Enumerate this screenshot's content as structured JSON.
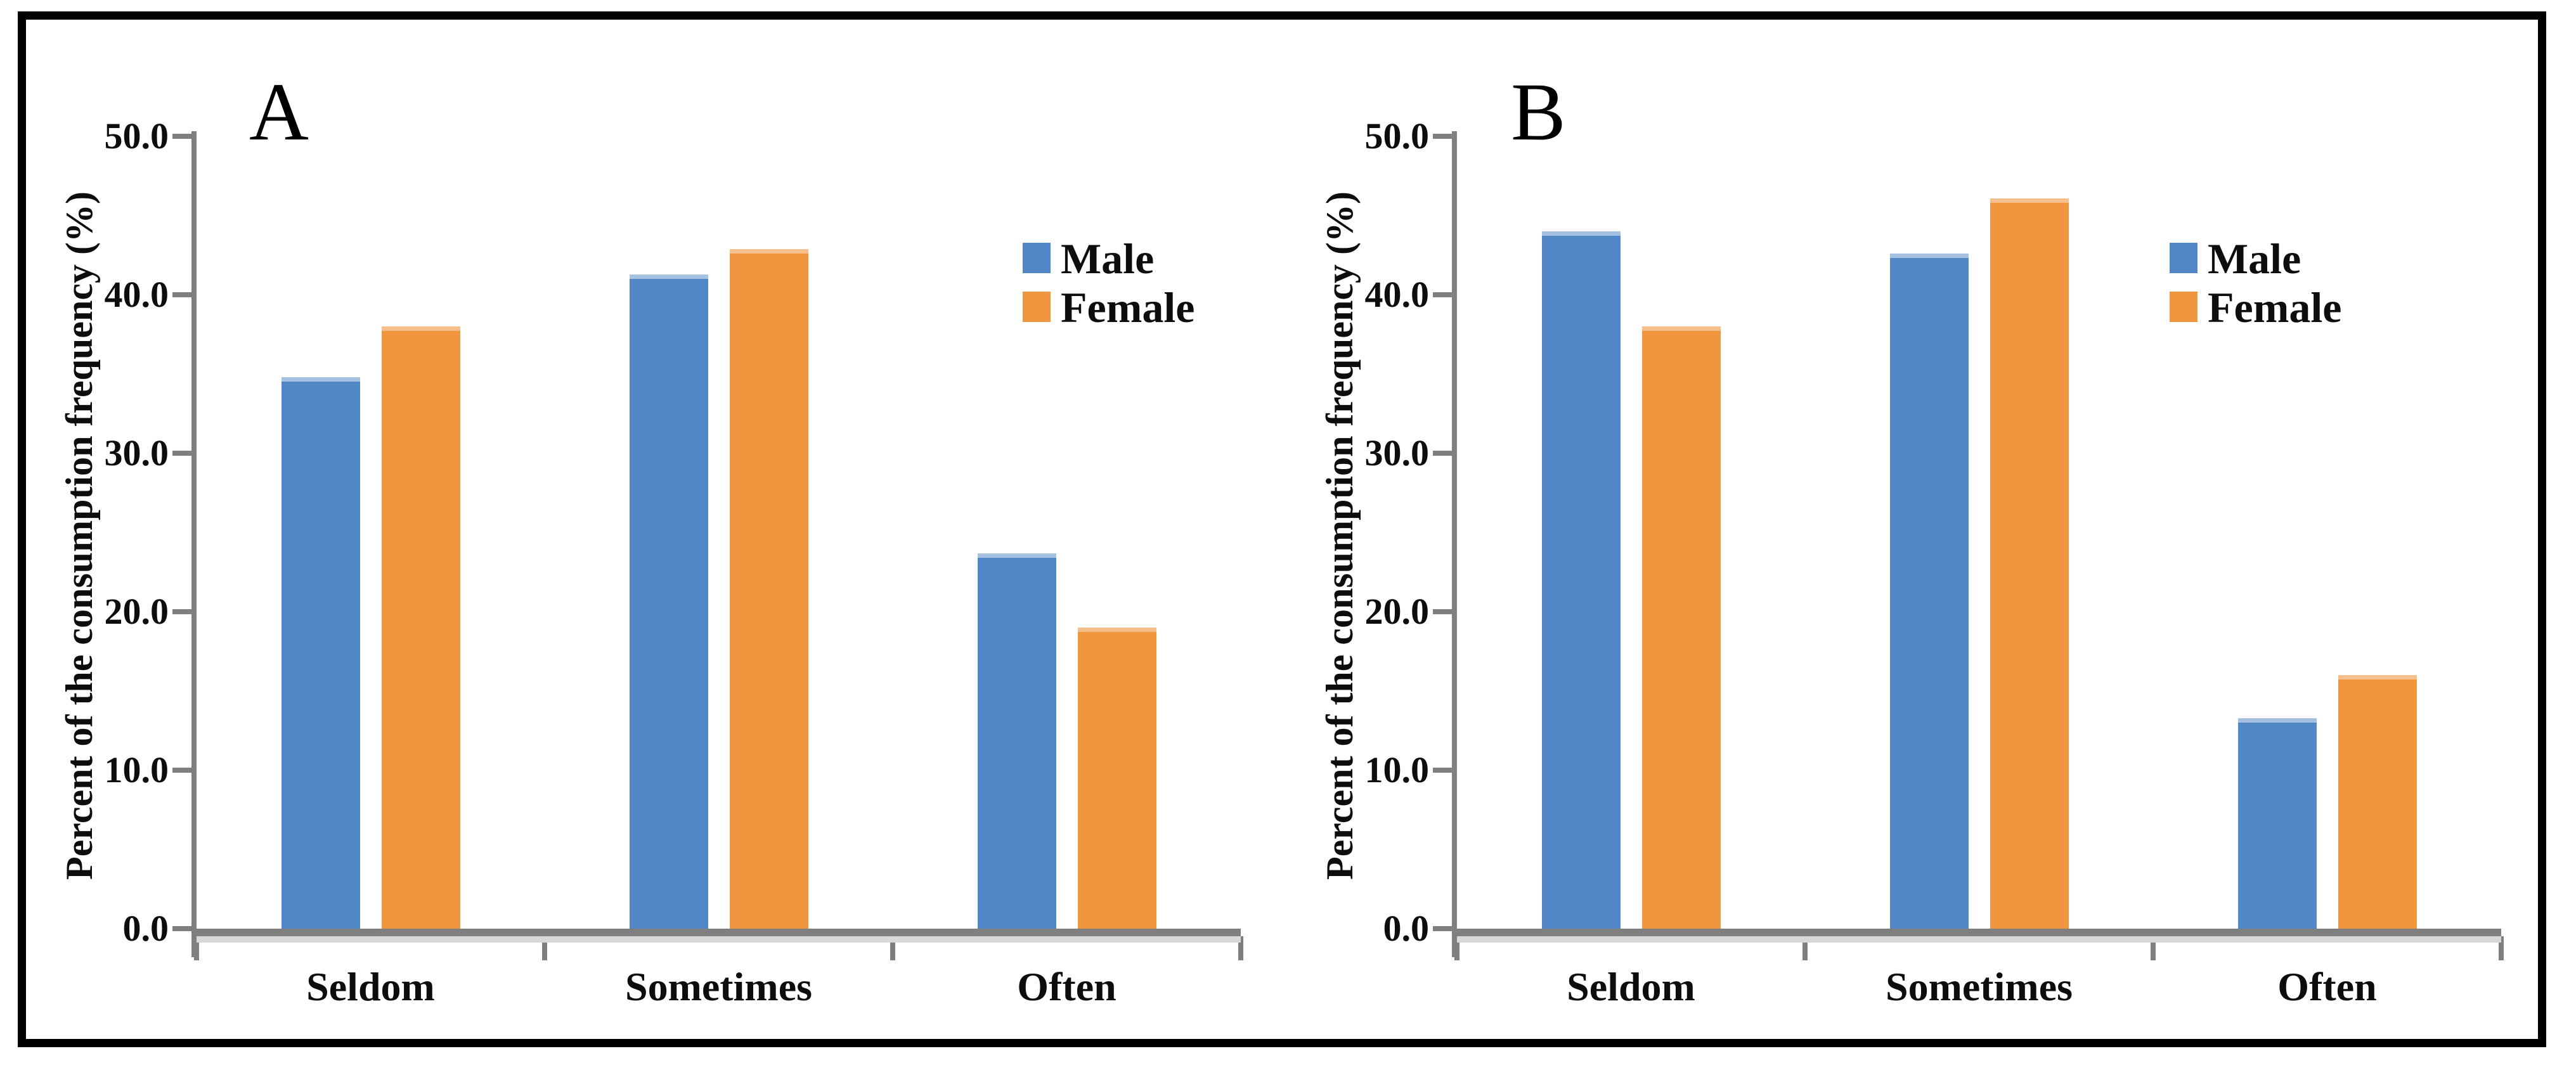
{
  "colors": {
    "male": "#5187C7",
    "male_cap": "#A5C0E0",
    "female": "#F2953F",
    "female_cap": "#F6BE8B",
    "axis_gray": "#7F7F7F",
    "axis_shadow": "#D8D8D8",
    "text": "#0D0D0D",
    "frame": "#000000",
    "background": "#FFFFFF"
  },
  "y_axis": {
    "title": "Percent of the consumption frequency (%)",
    "tick_labels": [
      "50.0",
      "40.0",
      "30.0",
      "20.0",
      "10.0",
      "0.0"
    ]
  },
  "x_axis": {
    "categories": [
      "Seldom",
      "Sometimes",
      "Often"
    ]
  },
  "legend": {
    "items": [
      "Male",
      "Female"
    ]
  },
  "panels": [
    {
      "letter": "A"
    },
    {
      "letter": "B"
    }
  ],
  "chart_data": [
    {
      "type": "bar",
      "panel_label": "A",
      "title": "",
      "categories": [
        "Seldom",
        "Sometimes",
        "Often"
      ],
      "series": [
        {
          "name": "Male",
          "color": "#5187C7",
          "values": [
            34.8,
            41.3,
            23.7
          ]
        },
        {
          "name": "Female",
          "color": "#F2953F",
          "values": [
            38.0,
            42.9,
            19.0
          ]
        }
      ],
      "xlabel": "",
      "ylabel": "Percent of the consumption frequency (%)",
      "ylim": [
        0,
        50
      ],
      "yticks": [
        0,
        10,
        20,
        30,
        40,
        50
      ],
      "grid": false,
      "legend_position": "upper-right"
    },
    {
      "type": "bar",
      "panel_label": "B",
      "title": "",
      "categories": [
        "Seldom",
        "Sometimes",
        "Often"
      ],
      "series": [
        {
          "name": "Male",
          "color": "#5187C7",
          "values": [
            44.0,
            42.6,
            13.3
          ]
        },
        {
          "name": "Female",
          "color": "#F2953F",
          "values": [
            38.0,
            46.1,
            16.0
          ]
        }
      ],
      "xlabel": "",
      "ylabel": "Percent of the consumption frequency (%)",
      "ylim": [
        0,
        50
      ],
      "yticks": [
        0,
        10,
        20,
        30,
        40,
        50
      ],
      "grid": false,
      "legend_position": "upper-right"
    }
  ]
}
